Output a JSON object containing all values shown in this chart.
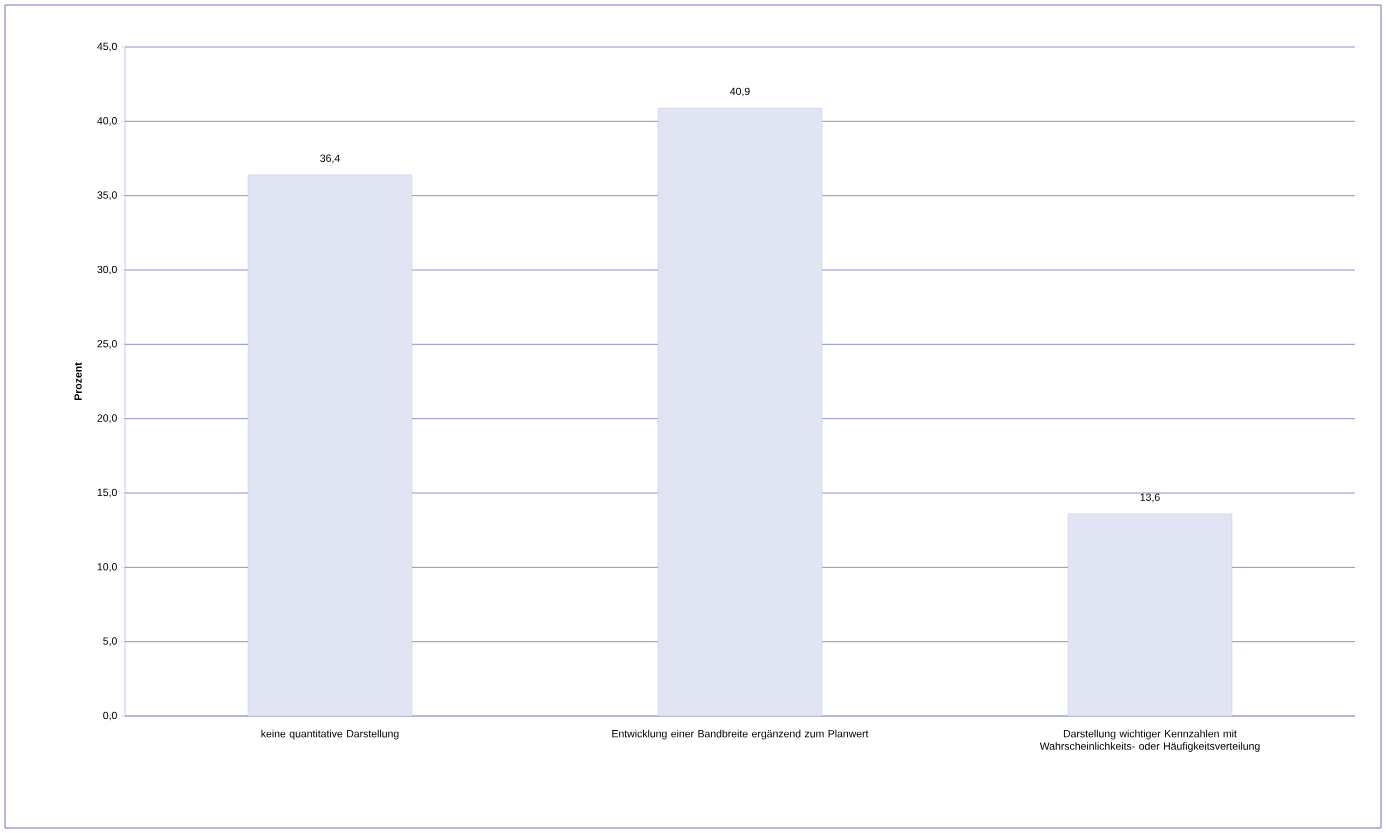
{
  "chart_data": {
    "type": "bar",
    "ylabel": "Prozent",
    "categories": [
      "keine quantitative Darstellung",
      "Entwicklung einer Bandbreite ergänzend zum Planwert",
      "Darstellung wichtiger Kennzahlen mit Wahrscheinlichkeits- oder Häufigkeitsverteilung"
    ],
    "values": [
      36.4,
      40.9,
      13.6
    ],
    "value_labels": [
      "36,4",
      "40,9",
      "13,6"
    ],
    "color": "#e1e4f2",
    "ylim": [
      0,
      45
    ],
    "yticks": [
      {
        "value": 0,
        "label": "0,0"
      },
      {
        "value": 5,
        "label": "5,0"
      },
      {
        "value": 10,
        "label": "10,0"
      },
      {
        "value": 15,
        "label": "15,0"
      },
      {
        "value": 20,
        "label": "20,0"
      },
      {
        "value": 25,
        "label": "25,0"
      },
      {
        "value": 30,
        "label": "30,0"
      },
      {
        "value": 35,
        "label": "35,0"
      },
      {
        "value": 40,
        "label": "40,0"
      },
      {
        "value": 45,
        "label": "45,0"
      }
    ],
    "grid": "y"
  }
}
